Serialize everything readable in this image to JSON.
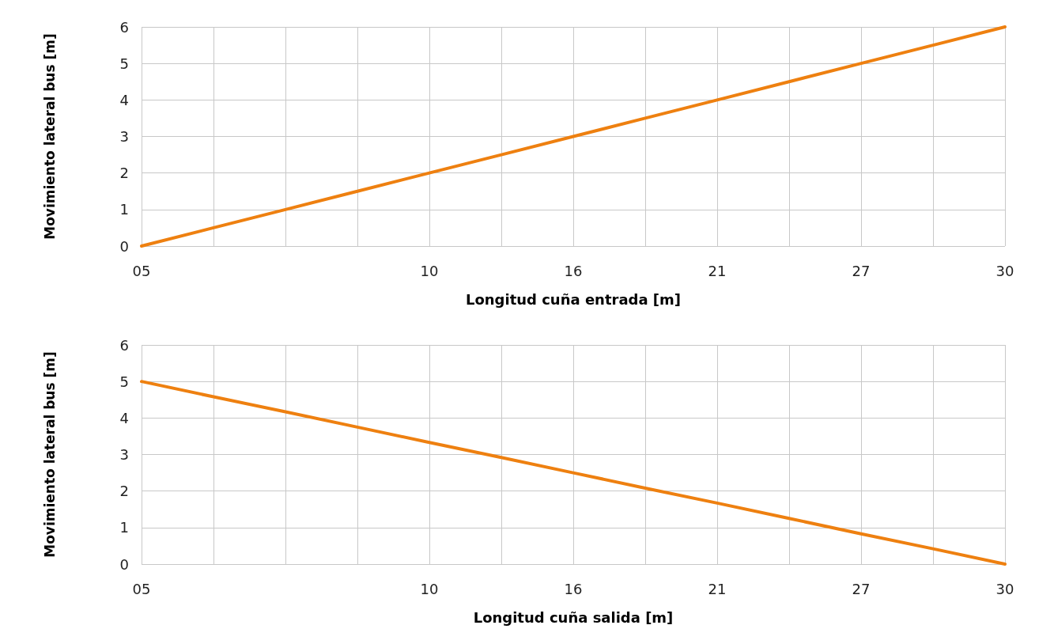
{
  "chart_data": [
    {
      "type": "line",
      "xlabel": "Longitud cuña entrada [m]",
      "ylabel": "Movimiento lateral bus [m]",
      "categories": [
        "05",
        null,
        null,
        null,
        "10",
        null,
        "16",
        null,
        "21",
        null,
        "27",
        null,
        "30"
      ],
      "series": [
        {
          "color": "#ee8010",
          "values": [
            0,
            0.5,
            1,
            1.5,
            2,
            2.5,
            3,
            3.5,
            4,
            4.5,
            5,
            5.5,
            6
          ]
        }
      ],
      "ylim": [
        0,
        6
      ],
      "yticks": [
        0,
        1,
        2,
        3,
        4,
        5,
        6
      ],
      "grid": true,
      "marker": "none",
      "line_style": "solid"
    },
    {
      "type": "line",
      "xlabel": "Longitud cuña salida [m]",
      "ylabel": "Movimiento lateral bus [m]",
      "categories": [
        "05",
        null,
        null,
        null,
        "10",
        null,
        "16",
        null,
        "21",
        null,
        "27",
        null,
        "30"
      ],
      "series": [
        {
          "color": "#ee8010",
          "values": [
            5,
            4.58,
            4.17,
            3.75,
            3.33,
            2.92,
            2.5,
            2.08,
            1.67,
            1.25,
            0.83,
            0.42,
            0
          ]
        }
      ],
      "ylim": [
        0,
        6
      ],
      "yticks": [
        0,
        1,
        2,
        3,
        4,
        5,
        6
      ],
      "grid": true,
      "marker": "none",
      "line_style": "solid"
    }
  ]
}
